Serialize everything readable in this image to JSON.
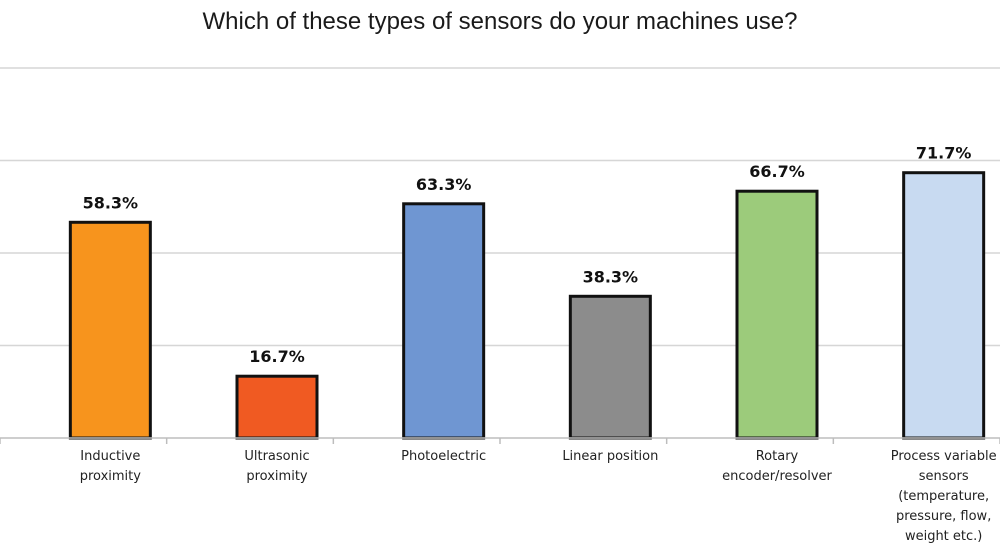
{
  "chart_data": {
    "type": "bar",
    "title": "Which of these types of sensors do your machines use?",
    "categories": [
      [
        "Inductive",
        "proximity"
      ],
      [
        "Ultrasonic",
        "proximity"
      ],
      [
        "Photoelectric"
      ],
      [
        "Linear position"
      ],
      [
        "Rotary",
        "encoder/resolver"
      ],
      [
        "Process variable",
        "sensors",
        "(temperature,",
        "pressure, flow,",
        "weight etc.)"
      ]
    ],
    "values": [
      58.3,
      16.7,
      63.3,
      38.3,
      66.7,
      71.7
    ],
    "value_labels": [
      "58.3%",
      "16.7%",
      "63.3%",
      "38.3%",
      "66.7%",
      "71.7%"
    ],
    "colors": [
      "#f7941d",
      "#f05a22",
      "#6f96d2",
      "#8c8c8c",
      "#9ccb7b",
      "#c8daf1"
    ],
    "ylim": [
      0,
      100
    ],
    "grid": true,
    "xlabel": "",
    "ylabel": ""
  }
}
